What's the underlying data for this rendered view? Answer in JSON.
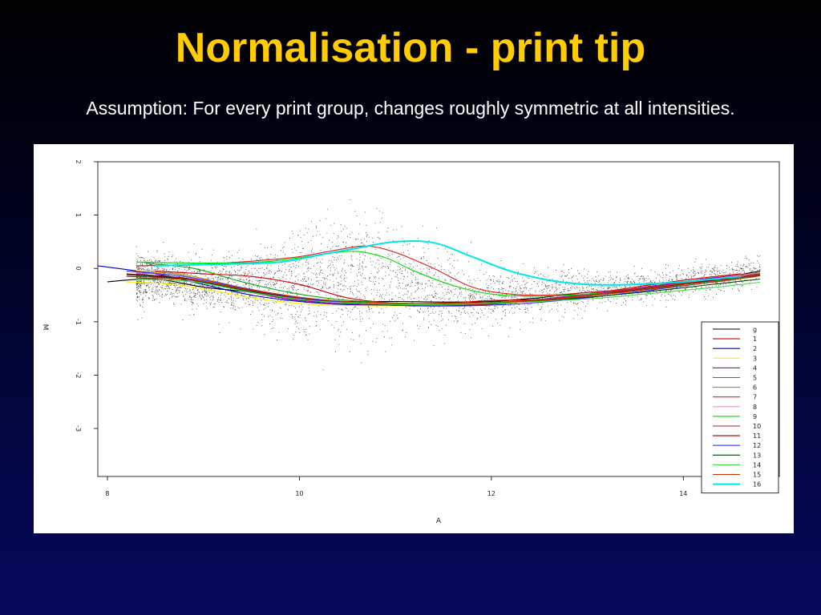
{
  "slide": {
    "title": "Normalisation - print tip",
    "subtitle": "Assumption: For every print group, changes roughly symmetric at all intensities."
  },
  "chart_data": {
    "type": "scatter",
    "title": "",
    "xlabel": "A",
    "ylabel": "M",
    "xlim": [
      7.9,
      15.0
    ],
    "ylim": [
      -3.9,
      2.0
    ],
    "x_ticks": [
      8,
      10,
      12,
      14
    ],
    "y_ticks": [
      2,
      1,
      0,
      -1,
      -2,
      -3
    ],
    "grid": false,
    "legend_position": "bottom-right",
    "scatter_color": "#000000",
    "series": [
      {
        "name": "g",
        "color": "#000000",
        "x": [
          8,
          8.5,
          9,
          9.5,
          10,
          10.5,
          11,
          11.5,
          12,
          12.5,
          13,
          13.5,
          14,
          14.8
        ],
        "y": [
          -0.25,
          -0.2,
          -0.35,
          -0.45,
          -0.6,
          -0.62,
          -0.62,
          -0.63,
          -0.62,
          -0.55,
          -0.45,
          -0.4,
          -0.3,
          -0.05
        ]
      },
      {
        "name": "1",
        "color": "#cc0000",
        "x": [
          8.5,
          9,
          9.5,
          10,
          10.5,
          11,
          11.5,
          12,
          12.5,
          13,
          13.5,
          14,
          14.6
        ],
        "y": [
          -0.05,
          -0.1,
          -0.15,
          -0.3,
          -0.55,
          -0.65,
          -0.65,
          -0.6,
          -0.58,
          -0.48,
          -0.35,
          -0.22,
          -0.1
        ]
      },
      {
        "name": "2",
        "color": "#0000cc",
        "x": [
          7.9,
          8.5,
          9,
          9.5,
          10,
          10.5,
          11,
          11.5,
          12,
          12.5,
          13,
          13.5,
          14,
          14.6
        ],
        "y": [
          0.05,
          -0.1,
          -0.3,
          -0.5,
          -0.62,
          -0.68,
          -0.7,
          -0.7,
          -0.66,
          -0.6,
          -0.5,
          -0.38,
          -0.25,
          -0.12
        ]
      },
      {
        "name": "3",
        "color": "#ffee00",
        "x": [
          8.2,
          8.7,
          9.2,
          9.7,
          10.2,
          10.7,
          11.2,
          11.7,
          12.2,
          12.7,
          13.2,
          13.7,
          14.2,
          14.7
        ],
        "y": [
          -0.25,
          -0.3,
          -0.45,
          -0.6,
          -0.68,
          -0.7,
          -0.7,
          -0.68,
          -0.64,
          -0.55,
          -0.45,
          -0.35,
          -0.22,
          -0.12
        ]
      },
      {
        "name": "4",
        "color": "#aa00cc",
        "x": [
          8.3,
          8.8,
          9.3,
          9.8,
          10.3,
          10.8,
          11.3,
          11.8,
          12.3,
          12.8,
          13.3,
          13.8,
          14.3,
          14.7
        ],
        "y": [
          -0.1,
          -0.2,
          -0.38,
          -0.55,
          -0.65,
          -0.68,
          -0.7,
          -0.68,
          -0.62,
          -0.52,
          -0.42,
          -0.3,
          -0.18,
          -0.1
        ]
      },
      {
        "name": "5",
        "color": "#00aa00",
        "x": [
          8.4,
          8.9,
          9.4,
          9.9,
          10.4,
          10.9,
          11.4,
          11.9,
          12.4,
          12.9,
          13.4,
          13.9,
          14.4,
          14.8
        ],
        "y": [
          0.1,
          0.0,
          -0.25,
          -0.45,
          -0.58,
          -0.64,
          -0.66,
          -0.64,
          -0.6,
          -0.52,
          -0.42,
          -0.32,
          -0.22,
          -0.12
        ]
      },
      {
        "name": "6",
        "color": "#bb8800",
        "x": [
          8.3,
          8.8,
          9.3,
          9.8,
          10.3,
          10.8,
          11.3,
          11.8,
          12.3,
          12.8,
          13.3,
          13.8,
          14.3,
          14.8
        ],
        "y": [
          -0.05,
          -0.12,
          -0.32,
          -0.52,
          -0.62,
          -0.66,
          -0.68,
          -0.67,
          -0.63,
          -0.55,
          -0.44,
          -0.34,
          -0.2,
          -0.08
        ]
      },
      {
        "name": "7",
        "color": "#dd2222",
        "x": [
          8.3,
          9,
          9.6,
          10,
          10.4,
          10.7,
          11,
          11.4,
          11.8,
          12.2,
          12.6,
          13,
          13.5,
          14,
          14.6
        ],
        "y": [
          0.05,
          0.08,
          0.15,
          0.22,
          0.35,
          0.42,
          0.3,
          0.0,
          -0.35,
          -0.48,
          -0.5,
          -0.45,
          -0.38,
          -0.28,
          -0.12
        ]
      },
      {
        "name": "8",
        "color": "#ff88cc",
        "x": [
          8.3,
          8.8,
          9.3,
          9.8,
          10.3,
          10.8,
          11.3,
          11.8,
          12.3,
          12.8,
          13.3,
          13.8,
          14.3,
          14.7
        ],
        "y": [
          -0.08,
          -0.15,
          -0.35,
          -0.52,
          -0.62,
          -0.67,
          -0.69,
          -0.67,
          -0.62,
          -0.55,
          -0.44,
          -0.32,
          -0.2,
          -0.1
        ]
      },
      {
        "name": "9",
        "color": "#00dd00",
        "x": [
          8.3,
          9,
          9.6,
          10,
          10.3,
          10.6,
          10.9,
          11.2,
          11.6,
          12,
          12.5,
          13,
          13.5,
          14,
          14.7
        ],
        "y": [
          0.12,
          0.1,
          0.12,
          0.2,
          0.28,
          0.32,
          0.2,
          -0.05,
          -0.32,
          -0.48,
          -0.52,
          -0.48,
          -0.4,
          -0.3,
          -0.15
        ]
      },
      {
        "name": "10",
        "color": "#aa2222",
        "x": [
          8.2,
          8.8,
          9.4,
          10,
          10.6,
          11.2,
          11.8,
          12.4,
          13,
          13.6,
          14.2,
          14.8
        ],
        "y": [
          -0.15,
          -0.2,
          -0.4,
          -0.58,
          -0.66,
          -0.68,
          -0.66,
          -0.6,
          -0.5,
          -0.36,
          -0.22,
          -0.1
        ]
      },
      {
        "name": "11",
        "color": "#880000",
        "x": [
          8.2,
          8.8,
          9.4,
          10,
          10.6,
          11.2,
          11.8,
          12.4,
          13,
          13.6,
          14.2,
          14.8
        ],
        "y": [
          -0.1,
          -0.18,
          -0.38,
          -0.56,
          -0.66,
          -0.7,
          -0.69,
          -0.62,
          -0.52,
          -0.38,
          -0.25,
          -0.12
        ]
      },
      {
        "name": "12",
        "color": "#3333ff",
        "x": [
          8.2,
          8.8,
          9.4,
          10,
          10.6,
          11.2,
          11.8,
          12.4,
          13,
          13.6,
          14.2,
          14.8
        ],
        "y": [
          -0.05,
          -0.15,
          -0.36,
          -0.55,
          -0.65,
          -0.7,
          -0.7,
          -0.65,
          -0.55,
          -0.42,
          -0.28,
          -0.14
        ]
      },
      {
        "name": "13",
        "color": "#004400",
        "x": [
          8.2,
          8.8,
          9.4,
          10,
          10.6,
          11.2,
          11.8,
          12.4,
          13,
          13.6,
          14.2,
          14.8
        ],
        "y": [
          -0.12,
          -0.2,
          -0.4,
          -0.58,
          -0.66,
          -0.68,
          -0.67,
          -0.62,
          -0.54,
          -0.44,
          -0.32,
          -0.2
        ]
      },
      {
        "name": "14",
        "color": "#44dd44",
        "x": [
          8.3,
          8.9,
          9.5,
          10.1,
          10.7,
          11.3,
          11.9,
          12.5,
          13.1,
          13.7,
          14.3,
          14.8
        ],
        "y": [
          -0.2,
          -0.25,
          -0.45,
          -0.6,
          -0.66,
          -0.68,
          -0.66,
          -0.62,
          -0.56,
          -0.46,
          -0.36,
          -0.26
        ]
      },
      {
        "name": "15",
        "color": "#cc3300",
        "x": [
          8.3,
          8.9,
          9.5,
          10.1,
          10.7,
          11.3,
          11.9,
          12.5,
          13.1,
          13.7,
          14.3,
          14.8
        ],
        "y": [
          -0.18,
          -0.22,
          -0.4,
          -0.56,
          -0.64,
          -0.66,
          -0.64,
          -0.6,
          -0.5,
          -0.38,
          -0.26,
          -0.14
        ]
      },
      {
        "name": "16",
        "color": "#00e5e5",
        "x": [
          8.5,
          9.2,
          9.8,
          10.2,
          10.6,
          11,
          11.4,
          11.8,
          12.2,
          12.6,
          13,
          13.5,
          14,
          14.6
        ],
        "y": [
          0.05,
          0.08,
          0.12,
          0.25,
          0.38,
          0.5,
          0.48,
          0.22,
          -0.05,
          -0.22,
          -0.3,
          -0.3,
          -0.25,
          -0.15
        ]
      }
    ]
  }
}
